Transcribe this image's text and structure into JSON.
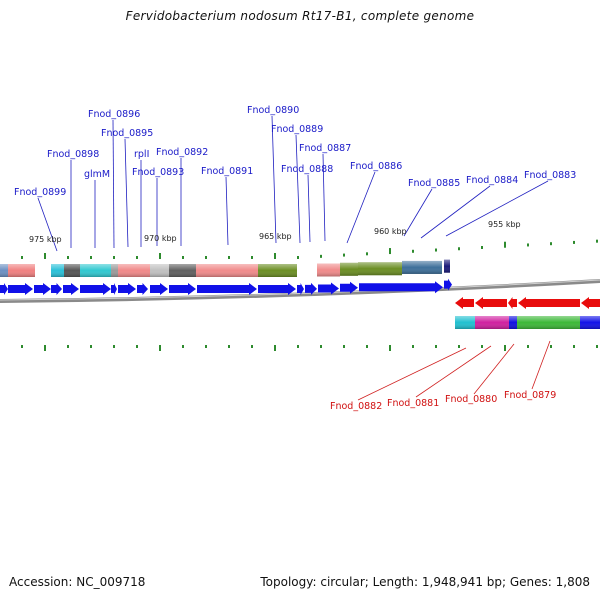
{
  "title": "Fervidobacterium nodosum Rt17-B1, complete genome",
  "footer": {
    "accession": "Accession: NC_009718",
    "topology": "Topology: circular; Length: 1,948,941 bp; Genes: 1,808"
  },
  "scale_ticks": [
    "975 kbp",
    "970 kbp",
    "965 kbp",
    "960 kbp",
    "955 kbp"
  ],
  "upper_gene_labels": [
    "Fnod_0899",
    "Fnod_0898",
    "glmM",
    "Fnod_0896",
    "Fnod_0895",
    "rplI",
    "Fnod_0893",
    "Fnod_0892",
    "Fnod_0891",
    "Fnod_0890",
    "Fnod_0889",
    "Fnod_0888",
    "Fnod_0887",
    "Fnod_0886",
    "Fnod_0885",
    "Fnod_0884",
    "Fnod_0883"
  ],
  "lower_gene_labels": [
    "Fnod_0882",
    "Fnod_0881",
    "Fnod_0880",
    "Fnod_0879"
  ],
  "colors": {
    "forward_strand": "#1010e8",
    "reverse_strand": "#e80c0c",
    "forward_label": "#1a1ac8",
    "reverse_label": "#d01010",
    "tick": "#2e8b2e",
    "backbone": "#8a8a8a"
  }
}
